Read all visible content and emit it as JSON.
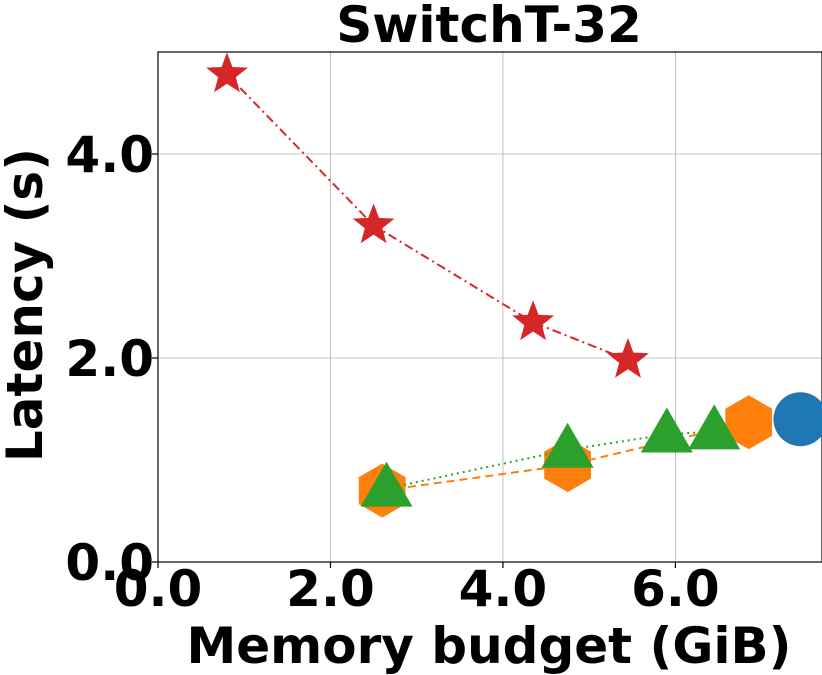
{
  "chart_data": {
    "type": "scatter",
    "title": "SwitchT-32",
    "xlabel": "Memory budget (GiB)",
    "ylabel": "Latency (s)",
    "xlim": [
      0,
      7.7
    ],
    "ylim": [
      0,
      5.0
    ],
    "xticks": [
      0,
      2,
      4,
      6
    ],
    "xtick_labels": [
      "0.0",
      "2.0",
      "4.0",
      "6.0"
    ],
    "yticks": [
      0,
      2,
      4
    ],
    "ytick_labels": [
      "0.0",
      "2.0",
      "4.0"
    ],
    "grid": true,
    "series": [
      {
        "marker": "star",
        "color": "#d62728",
        "line": "dashdot",
        "points": [
          [
            0.8,
            4.78
          ],
          [
            2.5,
            3.3
          ],
          [
            4.35,
            2.35
          ],
          [
            5.45,
            1.98
          ]
        ]
      },
      {
        "marker": "hexagon",
        "color": "#ff7f0e",
        "line": "dashed",
        "points": [
          [
            2.6,
            0.7
          ],
          [
            4.75,
            0.95
          ],
          [
            6.85,
            1.37
          ]
        ]
      },
      {
        "marker": "triangle",
        "color": "#2ca02c",
        "line": "dotted",
        "points": [
          [
            2.65,
            0.72
          ],
          [
            4.75,
            1.1
          ],
          [
            5.9,
            1.25
          ],
          [
            6.45,
            1.28
          ]
        ]
      },
      {
        "marker": "circle",
        "color": "#1f77b4",
        "line": "none",
        "points": [
          [
            7.45,
            1.4
          ]
        ]
      }
    ]
  }
}
